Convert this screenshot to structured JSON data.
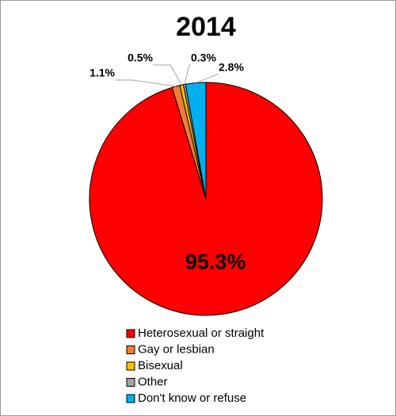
{
  "chart_data": {
    "type": "pie",
    "title": "2014",
    "categories": [
      "Heterosexual or straight",
      "Gay or lesbian",
      "Bisexual",
      "Other",
      "Don't know or refuse"
    ],
    "values": [
      95.3,
      1.1,
      0.5,
      0.3,
      2.8
    ],
    "value_labels": [
      "95.3%",
      "1.1%",
      "0.5%",
      "0.3%",
      "2.8%"
    ],
    "colors": [
      "#ff0000",
      "#ed7d31",
      "#ffc000",
      "#a5a5a5",
      "#00b0f0"
    ],
    "legend": "bottom"
  }
}
